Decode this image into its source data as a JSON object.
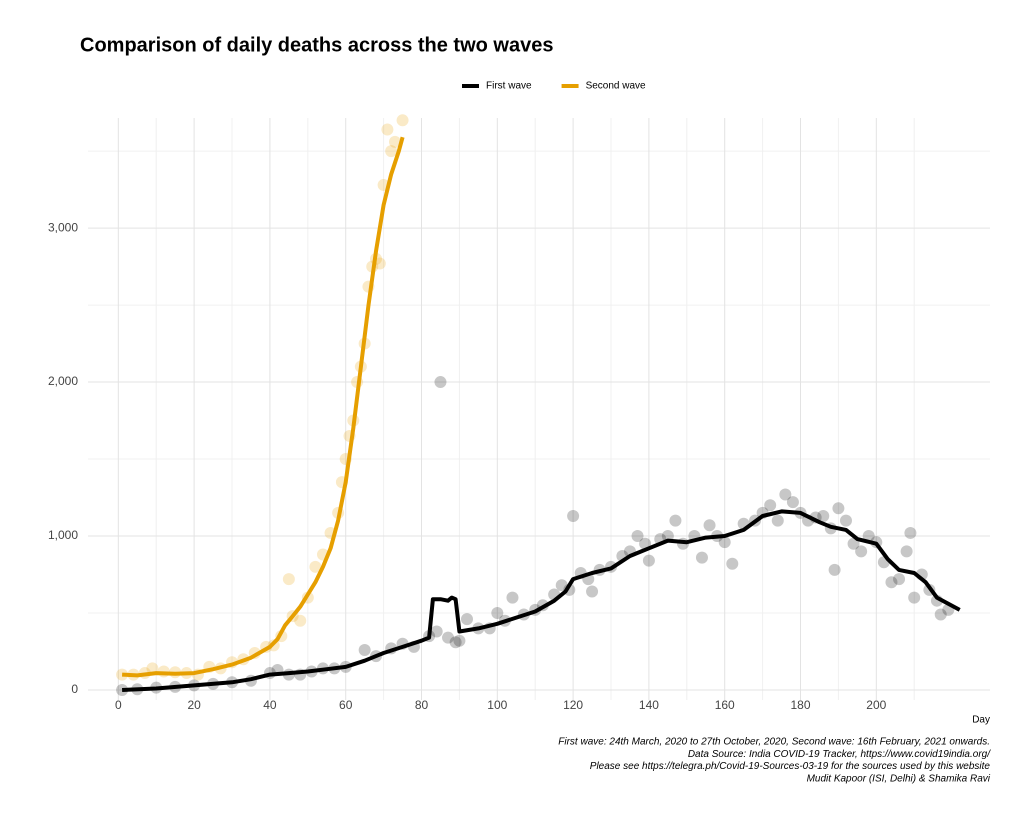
{
  "chart_data": {
    "type": "line",
    "title": "Comparison of daily deaths across the two waves",
    "x_label": "Day",
    "xlim": [
      -8,
      230
    ],
    "ylim": [
      -65,
      3715
    ],
    "xticks": [
      0,
      20,
      40,
      60,
      80,
      100,
      120,
      140,
      160,
      180,
      200
    ],
    "yticks": [
      0,
      {
        "value": 1000,
        "label": "1,000"
      },
      {
        "value": 2000,
        "label": "2,000"
      },
      {
        "value": 3000,
        "label": "3,000"
      }
    ],
    "grid": true,
    "legend": "top",
    "caption": [
      "First wave: 24th March, 2020 to 27th October, 2020, Second wave: 16th February, 2021 onwards.",
      "Data Source: India COVID-19 Tracker, https://www.covid19india.org/",
      "Please see https://telegra.ph/Covid-19-Sources-03-19 for the sources used by this website",
      "Mudit Kapoor (ISI, Delhi) & Shamika Ravi"
    ],
    "series": [
      {
        "name": "First wave",
        "color": "#000000",
        "x": [
          1,
          10,
          20,
          30,
          35,
          40,
          45,
          50,
          55,
          60,
          65,
          70,
          75,
          80,
          82,
          83,
          85,
          87,
          88,
          89,
          90,
          95,
          100,
          105,
          110,
          115,
          118,
          120,
          125,
          130,
          135,
          140,
          145,
          150,
          155,
          160,
          165,
          170,
          175,
          180,
          185,
          188,
          192,
          195,
          200,
          203,
          206,
          210,
          213,
          216,
          219,
          222
        ],
        "values": [
          0,
          10,
          30,
          50,
          70,
          100,
          110,
          120,
          135,
          150,
          190,
          240,
          280,
          320,
          340,
          590,
          590,
          580,
          600,
          590,
          380,
          400,
          430,
          470,
          510,
          580,
          640,
          720,
          760,
          790,
          870,
          920,
          970,
          960,
          990,
          1000,
          1040,
          1130,
          1160,
          1150,
          1090,
          1060,
          1040,
          980,
          950,
          850,
          780,
          760,
          700,
          600,
          560,
          520
        ],
        "points": {
          "x": [
            1,
            5,
            10,
            15,
            20,
            25,
            30,
            35,
            40,
            42,
            45,
            48,
            51,
            54,
            57,
            60,
            65,
            68,
            72,
            75,
            78,
            82,
            84,
            85,
            87,
            89,
            90,
            92,
            95,
            98,
            100,
            102,
            104,
            107,
            110,
            112,
            115,
            117,
            119,
            120,
            122,
            124,
            125,
            127,
            130,
            133,
            135,
            137,
            139,
            140,
            143,
            145,
            147,
            149,
            152,
            154,
            156,
            158,
            160,
            162,
            165,
            168,
            170,
            172,
            174,
            176,
            178,
            180,
            182,
            184,
            186,
            188,
            189,
            190,
            192,
            194,
            196,
            198,
            200,
            202,
            204,
            206,
            208,
            209,
            210,
            212,
            214,
            216,
            217,
            219
          ],
          "values": [
            0,
            5,
            15,
            20,
            30,
            40,
            50,
            60,
            110,
            130,
            100,
            100,
            120,
            140,
            140,
            150,
            260,
            220,
            270,
            300,
            280,
            350,
            380,
            2000,
            340,
            310,
            320,
            460,
            400,
            400,
            500,
            450,
            600,
            490,
            520,
            550,
            620,
            680,
            650,
            1130,
            760,
            720,
            640,
            780,
            800,
            870,
            900,
            1000,
            950,
            840,
            980,
            1000,
            1100,
            950,
            1000,
            860,
            1070,
            1000,
            960,
            820,
            1080,
            1100,
            1150,
            1200,
            1100,
            1270,
            1220,
            1150,
            1100,
            1120,
            1130,
            1050,
            780,
            1180,
            1100,
            950,
            900,
            1000,
            960,
            830,
            700,
            720,
            900,
            1020,
            600,
            750,
            650,
            580,
            490,
            520
          ]
        }
      },
      {
        "name": "Second wave",
        "color": "#E69F00",
        "x": [
          1,
          5,
          10,
          15,
          20,
          25,
          30,
          35,
          40,
          42,
          44,
          46,
          48,
          50,
          52,
          54,
          56,
          58,
          60,
          62,
          64,
          66,
          68,
          70,
          72,
          74,
          75
        ],
        "values": [
          100,
          95,
          110,
          105,
          110,
          135,
          165,
          210,
          280,
          330,
          420,
          480,
          540,
          620,
          700,
          800,
          920,
          1100,
          1350,
          1700,
          2100,
          2500,
          2850,
          3150,
          3350,
          3500,
          3590
        ],
        "points": {
          "x": [
            1,
            4,
            7,
            9,
            12,
            15,
            18,
            21,
            24,
            27,
            30,
            33,
            36,
            39,
            41,
            43,
            45,
            46,
            48,
            50,
            52,
            54,
            56,
            58,
            59,
            60,
            61,
            62,
            63,
            64,
            65,
            66,
            67,
            68,
            69,
            70,
            71,
            72,
            73,
            75
          ],
          "values": [
            100,
            100,
            110,
            140,
            120,
            115,
            110,
            100,
            150,
            140,
            180,
            200,
            240,
            280,
            290,
            350,
            720,
            480,
            450,
            600,
            800,
            880,
            1020,
            1150,
            1350,
            1500,
            1650,
            1750,
            2000,
            2100,
            2250,
            2620,
            2750,
            2800,
            2770,
            3280,
            3640,
            3500,
            3560,
            3700
          ]
        }
      }
    ]
  }
}
